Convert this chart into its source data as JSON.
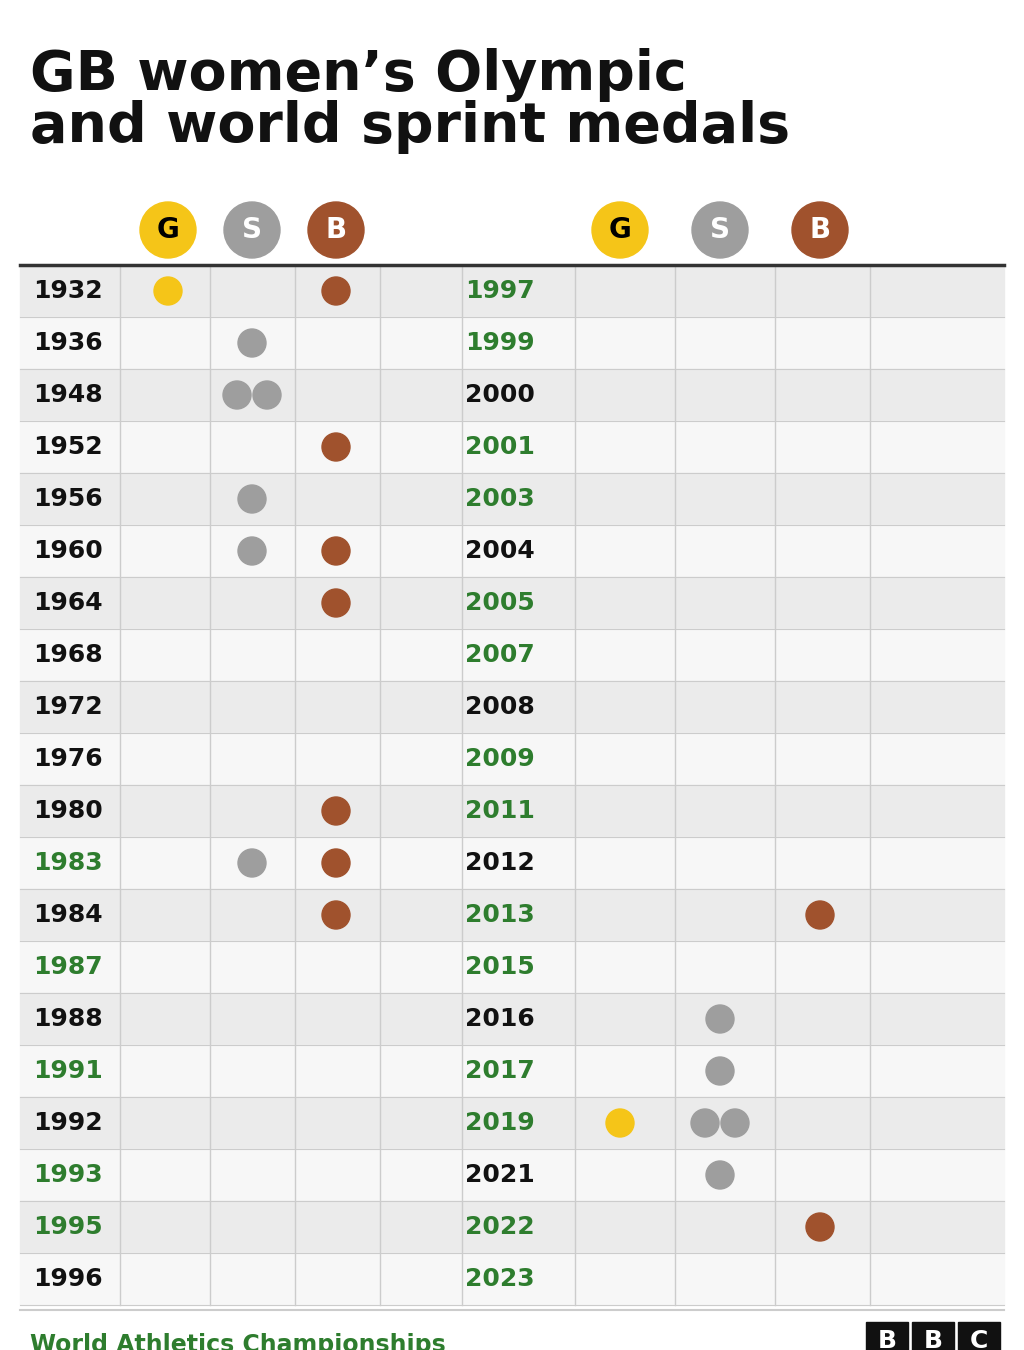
{
  "title_line1": "GB women’s Olympic",
  "title_line2": "and world sprint medals",
  "subtitle": "World Athletics Championships",
  "gold_color": "#F5C518",
  "silver_color": "#9E9E9E",
  "bronze_color": "#A0522D",
  "green_color": "#2E7D2E",
  "black_color": "#111111",
  "bg_color": "#FFFFFF",
  "row_alt_color": "#EBEBEB",
  "row_white_color": "#F7F7F7",
  "left_years": [
    {
      "year": "1932",
      "green": false,
      "medals": {
        "G": 1,
        "S": 0,
        "B": 1
      }
    },
    {
      "year": "1936",
      "green": false,
      "medals": {
        "G": 0,
        "S": 1,
        "B": 0
      }
    },
    {
      "year": "1948",
      "green": false,
      "medals": {
        "G": 0,
        "S": 2,
        "B": 0
      }
    },
    {
      "year": "1952",
      "green": false,
      "medals": {
        "G": 0,
        "S": 0,
        "B": 1
      }
    },
    {
      "year": "1956",
      "green": false,
      "medals": {
        "G": 0,
        "S": 1,
        "B": 0
      }
    },
    {
      "year": "1960",
      "green": false,
      "medals": {
        "G": 0,
        "S": 1,
        "B": 1
      }
    },
    {
      "year": "1964",
      "green": false,
      "medals": {
        "G": 0,
        "S": 0,
        "B": 1
      }
    },
    {
      "year": "1968",
      "green": false,
      "medals": {
        "G": 0,
        "S": 0,
        "B": 0
      }
    },
    {
      "year": "1972",
      "green": false,
      "medals": {
        "G": 0,
        "S": 0,
        "B": 0
      }
    },
    {
      "year": "1976",
      "green": false,
      "medals": {
        "G": 0,
        "S": 0,
        "B": 0
      }
    },
    {
      "year": "1980",
      "green": false,
      "medals": {
        "G": 0,
        "S": 0,
        "B": 1
      }
    },
    {
      "year": "1983",
      "green": true,
      "medals": {
        "G": 0,
        "S": 1,
        "B": 1
      }
    },
    {
      "year": "1984",
      "green": false,
      "medals": {
        "G": 0,
        "S": 0,
        "B": 1
      }
    },
    {
      "year": "1987",
      "green": true,
      "medals": {
        "G": 0,
        "S": 0,
        "B": 0
      }
    },
    {
      "year": "1988",
      "green": false,
      "medals": {
        "G": 0,
        "S": 0,
        "B": 0
      }
    },
    {
      "year": "1991",
      "green": true,
      "medals": {
        "G": 0,
        "S": 0,
        "B": 0
      }
    },
    {
      "year": "1992",
      "green": false,
      "medals": {
        "G": 0,
        "S": 0,
        "B": 0
      }
    },
    {
      "year": "1993",
      "green": true,
      "medals": {
        "G": 0,
        "S": 0,
        "B": 0
      }
    },
    {
      "year": "1995",
      "green": true,
      "medals": {
        "G": 0,
        "S": 0,
        "B": 0
      }
    },
    {
      "year": "1996",
      "green": false,
      "medals": {
        "G": 0,
        "S": 0,
        "B": 0
      }
    }
  ],
  "right_years": [
    {
      "year": "1997",
      "green": true,
      "medals": {
        "G": 0,
        "S": 0,
        "B": 0
      }
    },
    {
      "year": "1999",
      "green": true,
      "medals": {
        "G": 0,
        "S": 0,
        "B": 0
      }
    },
    {
      "year": "2000",
      "green": false,
      "medals": {
        "G": 0,
        "S": 0,
        "B": 0
      }
    },
    {
      "year": "2001",
      "green": true,
      "medals": {
        "G": 0,
        "S": 0,
        "B": 0
      }
    },
    {
      "year": "2003",
      "green": true,
      "medals": {
        "G": 0,
        "S": 0,
        "B": 0
      }
    },
    {
      "year": "2004",
      "green": false,
      "medals": {
        "G": 0,
        "S": 0,
        "B": 0
      }
    },
    {
      "year": "2005",
      "green": true,
      "medals": {
        "G": 0,
        "S": 0,
        "B": 0
      }
    },
    {
      "year": "2007",
      "green": true,
      "medals": {
        "G": 0,
        "S": 0,
        "B": 0
      }
    },
    {
      "year": "2008",
      "green": false,
      "medals": {
        "G": 0,
        "S": 0,
        "B": 0
      }
    },
    {
      "year": "2009",
      "green": true,
      "medals": {
        "G": 0,
        "S": 0,
        "B": 0
      }
    },
    {
      "year": "2011",
      "green": true,
      "medals": {
        "G": 0,
        "S": 0,
        "B": 0
      }
    },
    {
      "year": "2012",
      "green": false,
      "medals": {
        "G": 0,
        "S": 0,
        "B": 0
      }
    },
    {
      "year": "2013",
      "green": true,
      "medals": {
        "G": 0,
        "S": 0,
        "B": 1
      }
    },
    {
      "year": "2015",
      "green": true,
      "medals": {
        "G": 0,
        "S": 0,
        "B": 0
      }
    },
    {
      "year": "2016",
      "green": false,
      "medals": {
        "G": 0,
        "S": 1,
        "B": 0
      }
    },
    {
      "year": "2017",
      "green": true,
      "medals": {
        "G": 0,
        "S": 1,
        "B": 0
      }
    },
    {
      "year": "2019",
      "green": true,
      "medals": {
        "G": 1,
        "S": 2,
        "B": 0
      }
    },
    {
      "year": "2021",
      "green": false,
      "medals": {
        "G": 0,
        "S": 1,
        "B": 0
      }
    },
    {
      "year": "2022",
      "green": true,
      "medals": {
        "G": 0,
        "S": 0,
        "B": 1
      }
    },
    {
      "year": "2023",
      "green": true,
      "medals": {
        "G": 0,
        "S": 0,
        "B": 0
      }
    }
  ]
}
